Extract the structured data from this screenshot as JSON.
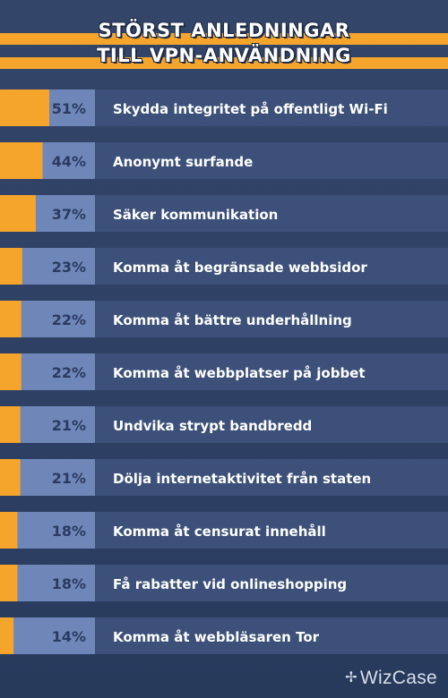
{
  "brand": {
    "name": "WizCase",
    "icon": "sparkle-icon"
  },
  "colors": {
    "accent": "#f5a52c",
    "pct_box": "#6f87b8",
    "row": "#3c5079",
    "pct_text": "#2a3a62"
  },
  "chart_data": {
    "type": "bar",
    "orientation": "horizontal",
    "title_lines": [
      "STÖRST ANLEDNINGAR",
      "TILL VPN-ANVÄNDNING"
    ],
    "value_suffix": "%",
    "xlim": [
      0,
      100
    ],
    "categories": [
      "Skydda integritet på offentligt Wi-Fi",
      "Anonymt surfande",
      "Säker kommunikation",
      "Komma åt begränsade webbsidor",
      "Komma åt bättre underhållning",
      "Komma åt webbplatser på jobbet",
      "Undvika strypt bandbredd",
      "Dölja internetaktivitet från staten",
      "Komma åt censurat innehåll",
      "Få rabatter vid onlineshopping",
      "Komma åt webbläsaren Tor"
    ],
    "values": [
      51,
      44,
      37,
      23,
      22,
      22,
      21,
      21,
      18,
      18,
      14
    ],
    "labels": [
      "51%",
      "44%",
      "37%",
      "23%",
      "22%",
      "22%",
      "21%",
      "21%",
      "18%",
      "18%",
      "14%"
    ]
  }
}
